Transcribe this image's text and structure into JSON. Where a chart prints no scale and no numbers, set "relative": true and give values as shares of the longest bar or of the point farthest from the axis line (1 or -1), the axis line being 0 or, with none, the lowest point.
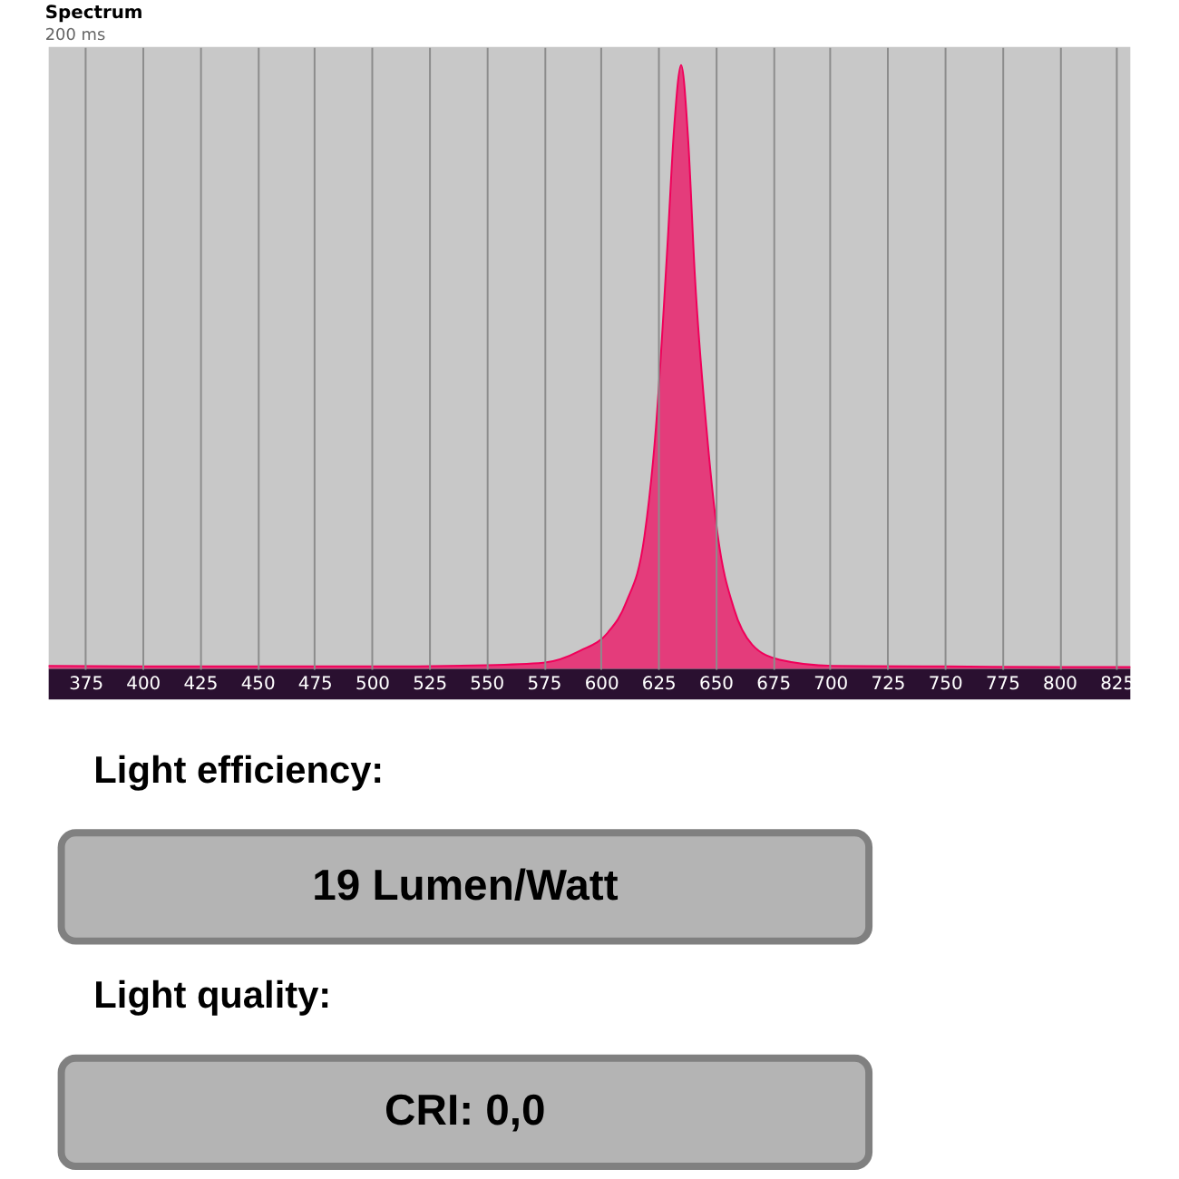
{
  "chart_data": [
    {
      "type": "area",
      "title": "Spectrum",
      "subtitle": "200 ms",
      "relative": true,
      "x": [
        359,
        400,
        450,
        500,
        550,
        575,
        591,
        603,
        611,
        619,
        624,
        629,
        632,
        635,
        638,
        641,
        646,
        651,
        658,
        666,
        678,
        701,
        750,
        800,
        831
      ],
      "series": [
        {
          "color": "#f0005a",
          "values": [
            0.005,
            0.004,
            0.004,
            0.004,
            0.006,
            0.01,
            0.03,
            0.06,
            0.11,
            0.22,
            0.4,
            0.7,
            0.9,
            1.0,
            0.88,
            0.65,
            0.4,
            0.22,
            0.1,
            0.04,
            0.015,
            0.005,
            0.004,
            0.003,
            0.003
          ]
        }
      ],
      "xlim": [
        359,
        831
      ],
      "xticks": [
        375,
        400,
        425,
        450,
        475,
        500,
        525,
        550,
        575,
        600,
        625,
        650,
        675,
        700,
        725,
        750,
        775,
        800,
        825
      ],
      "grid": "x"
    },
    {
      "type": "other",
      "annotations": [
        "Light efficiency:",
        "19 Lumen/Watt",
        "Light quality:",
        "CRI: 0,0"
      ]
    }
  ]
}
